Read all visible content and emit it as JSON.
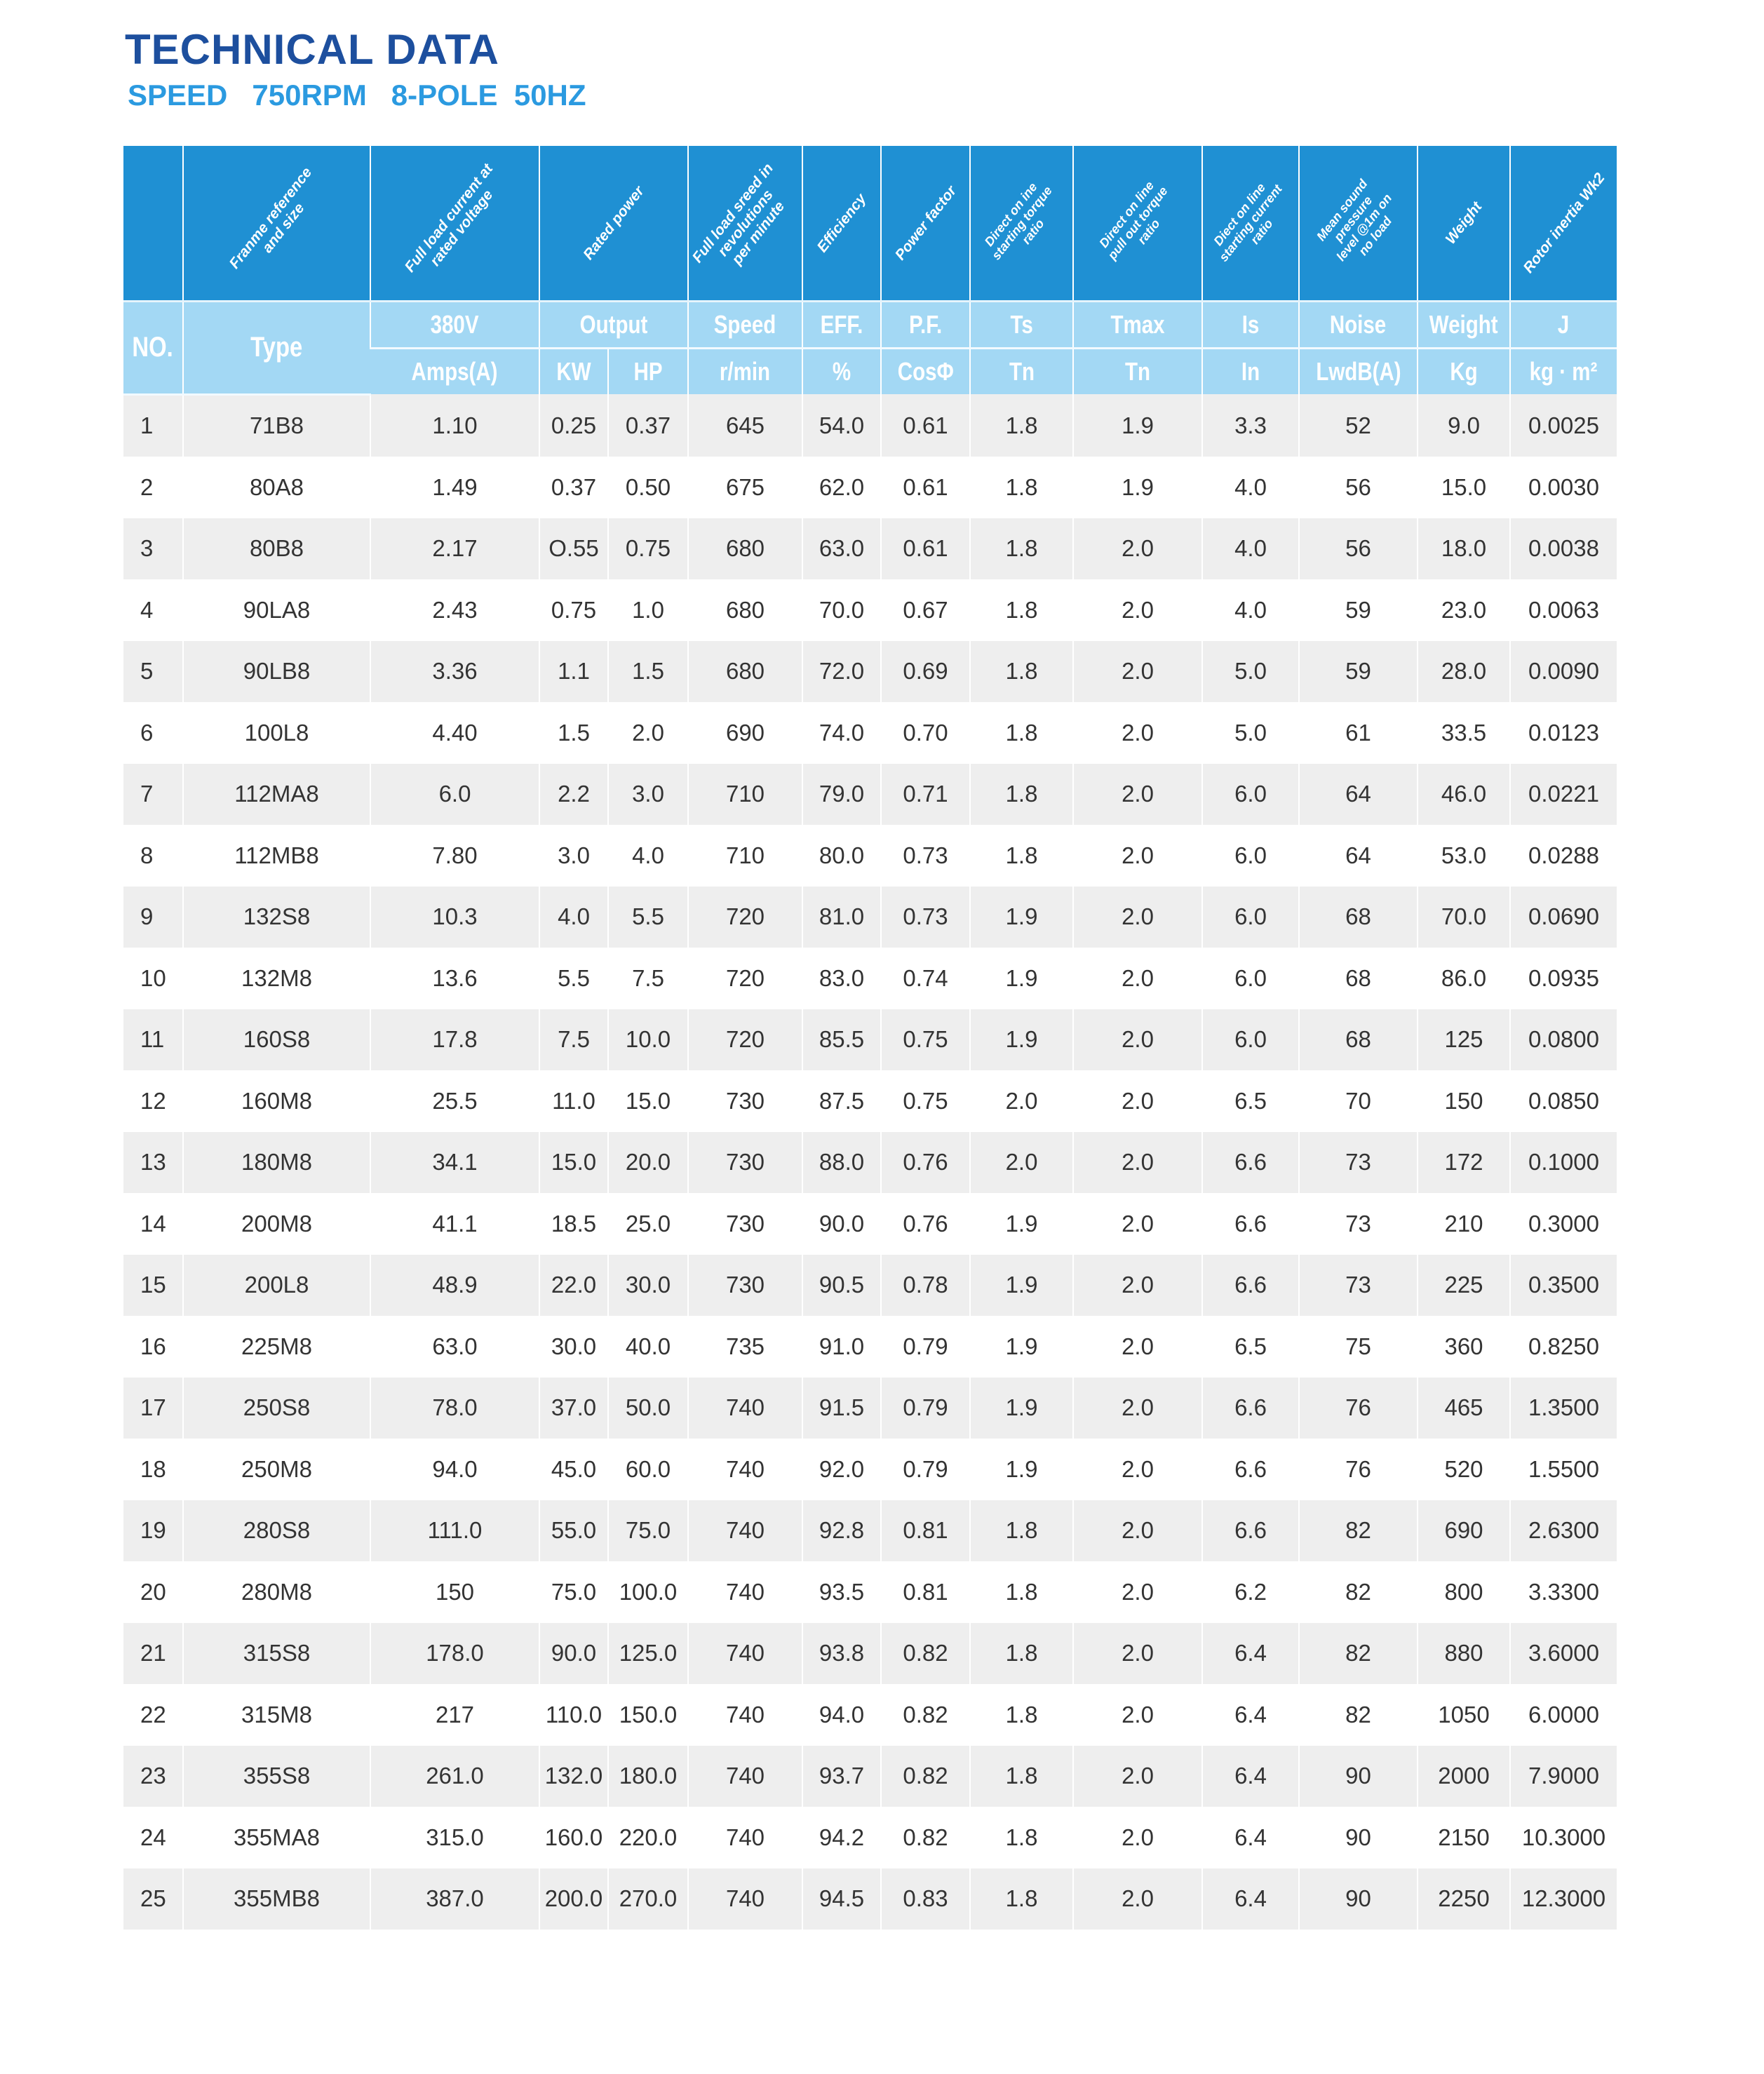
{
  "title": "TECHNICAL DATA",
  "subtitle": "SPEED   750RPM   8-POLE  50HZ",
  "colors": {
    "title": "#1d4f9e",
    "subtitle": "#2b9ae0",
    "header_dark": "#1f90d3",
    "header_light": "#a3d8f4",
    "row_alt": "#eeeeee"
  },
  "header": {
    "descriptions": [
      "Franme reference\nand size",
      "Full load current at\nrated voltage",
      "Rated power",
      "Full load sreed in\nrevolutions\nper minute",
      "Efficiency",
      "Power factor",
      "Direct on ine\nstarting torque\nratio",
      "Direct on line\npull out torque\nratio",
      "Diect on line\nstarting current\nratio",
      "Mean sound\npressure\nlevel @1m on\nno load",
      "Weight",
      "Rotor inertia Wk2"
    ],
    "no": "NO.",
    "type": "Type",
    "row1": [
      "380V",
      "Output",
      "Speed",
      "EFF.",
      "P.F.",
      "Ts",
      "Tmax",
      "Is",
      "Noise",
      "Weight",
      "J"
    ],
    "row2": [
      "Amps(A)",
      "KW",
      "HP",
      "r/min",
      "%",
      "CosΦ",
      "Tn",
      "Tn",
      "In",
      "LwdB(A)",
      "Kg",
      "kg · m²"
    ]
  },
  "rows": [
    [
      "1",
      "71B8",
      "1.10",
      "0.25",
      "0.37",
      "645",
      "54.0",
      "0.61",
      "1.8",
      "1.9",
      "3.3",
      "52",
      "9.0",
      "0.0025"
    ],
    [
      "2",
      "80A8",
      "1.49",
      "0.37",
      "0.50",
      "675",
      "62.0",
      "0.61",
      "1.8",
      "1.9",
      "4.0",
      "56",
      "15.0",
      "0.0030"
    ],
    [
      "3",
      "80B8",
      "2.17",
      "O.55",
      "0.75",
      "680",
      "63.0",
      "0.61",
      "1.8",
      "2.0",
      "4.0",
      "56",
      "18.0",
      "0.0038"
    ],
    [
      "4",
      "90LA8",
      "2.43",
      "0.75",
      "1.0",
      "680",
      "70.0",
      "0.67",
      "1.8",
      "2.0",
      "4.0",
      "59",
      "23.0",
      "0.0063"
    ],
    [
      "5",
      "90LB8",
      "3.36",
      "1.1",
      "1.5",
      "680",
      "72.0",
      "0.69",
      "1.8",
      "2.0",
      "5.0",
      "59",
      "28.0",
      "0.0090"
    ],
    [
      "6",
      "100L8",
      "4.40",
      "1.5",
      "2.0",
      "690",
      "74.0",
      "0.70",
      "1.8",
      "2.0",
      "5.0",
      "61",
      "33.5",
      "0.0123"
    ],
    [
      "7",
      "112MA8",
      "6.0",
      "2.2",
      "3.0",
      "710",
      "79.0",
      "0.71",
      "1.8",
      "2.0",
      "6.0",
      "64",
      "46.0",
      "0.0221"
    ],
    [
      "8",
      "112MB8",
      "7.80",
      "3.0",
      "4.0",
      "710",
      "80.0",
      "0.73",
      "1.8",
      "2.0",
      "6.0",
      "64",
      "53.0",
      "0.0288"
    ],
    [
      "9",
      "132S8",
      "10.3",
      "4.0",
      "5.5",
      "720",
      "81.0",
      "0.73",
      "1.9",
      "2.0",
      "6.0",
      "68",
      "70.0",
      "0.0690"
    ],
    [
      "10",
      "132M8",
      "13.6",
      "5.5",
      "7.5",
      "720",
      "83.0",
      "0.74",
      "1.9",
      "2.0",
      "6.0",
      "68",
      "86.0",
      "0.0935"
    ],
    [
      "11",
      "160S8",
      "17.8",
      "7.5",
      "10.0",
      "720",
      "85.5",
      "0.75",
      "1.9",
      "2.0",
      "6.0",
      "68",
      "125",
      "0.0800"
    ],
    [
      "12",
      "160M8",
      "25.5",
      "11.0",
      "15.0",
      "730",
      "87.5",
      "0.75",
      "2.0",
      "2.0",
      "6.5",
      "70",
      "150",
      "0.0850"
    ],
    [
      "13",
      "180M8",
      "34.1",
      "15.0",
      "20.0",
      "730",
      "88.0",
      "0.76",
      "2.0",
      "2.0",
      "6.6",
      "73",
      "172",
      "0.1000"
    ],
    [
      "14",
      "200M8",
      "41.1",
      "18.5",
      "25.0",
      "730",
      "90.0",
      "0.76",
      "1.9",
      "2.0",
      "6.6",
      "73",
      "210",
      "0.3000"
    ],
    [
      "15",
      "200L8",
      "48.9",
      "22.0",
      "30.0",
      "730",
      "90.5",
      "0.78",
      "1.9",
      "2.0",
      "6.6",
      "73",
      "225",
      "0.3500"
    ],
    [
      "16",
      "225M8",
      "63.0",
      "30.0",
      "40.0",
      "735",
      "91.0",
      "0.79",
      "1.9",
      "2.0",
      "6.5",
      "75",
      "360",
      "0.8250"
    ],
    [
      "17",
      "250S8",
      "78.0",
      "37.0",
      "50.0",
      "740",
      "91.5",
      "0.79",
      "1.9",
      "2.0",
      "6.6",
      "76",
      "465",
      "1.3500"
    ],
    [
      "18",
      "250M8",
      "94.0",
      "45.0",
      "60.0",
      "740",
      "92.0",
      "0.79",
      "1.9",
      "2.0",
      "6.6",
      "76",
      "520",
      "1.5500"
    ],
    [
      "19",
      "280S8",
      "111.0",
      "55.0",
      "75.0",
      "740",
      "92.8",
      "0.81",
      "1.8",
      "2.0",
      "6.6",
      "82",
      "690",
      "2.6300"
    ],
    [
      "20",
      "280M8",
      "150",
      "75.0",
      "100.0",
      "740",
      "93.5",
      "0.81",
      "1.8",
      "2.0",
      "6.2",
      "82",
      "800",
      "3.3300"
    ],
    [
      "21",
      "315S8",
      "178.0",
      "90.0",
      "125.0",
      "740",
      "93.8",
      "0.82",
      "1.8",
      "2.0",
      "6.4",
      "82",
      "880",
      "3.6000"
    ],
    [
      "22",
      "315M8",
      "217",
      "110.0",
      "150.0",
      "740",
      "94.0",
      "0.82",
      "1.8",
      "2.0",
      "6.4",
      "82",
      "1050",
      "6.0000"
    ],
    [
      "23",
      "355S8",
      "261.0",
      "132.0",
      "180.0",
      "740",
      "93.7",
      "0.82",
      "1.8",
      "2.0",
      "6.4",
      "90",
      "2000",
      "7.9000"
    ],
    [
      "24",
      "355MA8",
      "315.0",
      "160.0",
      "220.0",
      "740",
      "94.2",
      "0.82",
      "1.8",
      "2.0",
      "6.4",
      "90",
      "2150",
      "10.3000"
    ],
    [
      "25",
      "355MB8",
      "387.0",
      "200.0",
      "270.0",
      "740",
      "94.5",
      "0.83",
      "1.8",
      "2.0",
      "6.4",
      "90",
      "2250",
      "12.3000"
    ]
  ]
}
